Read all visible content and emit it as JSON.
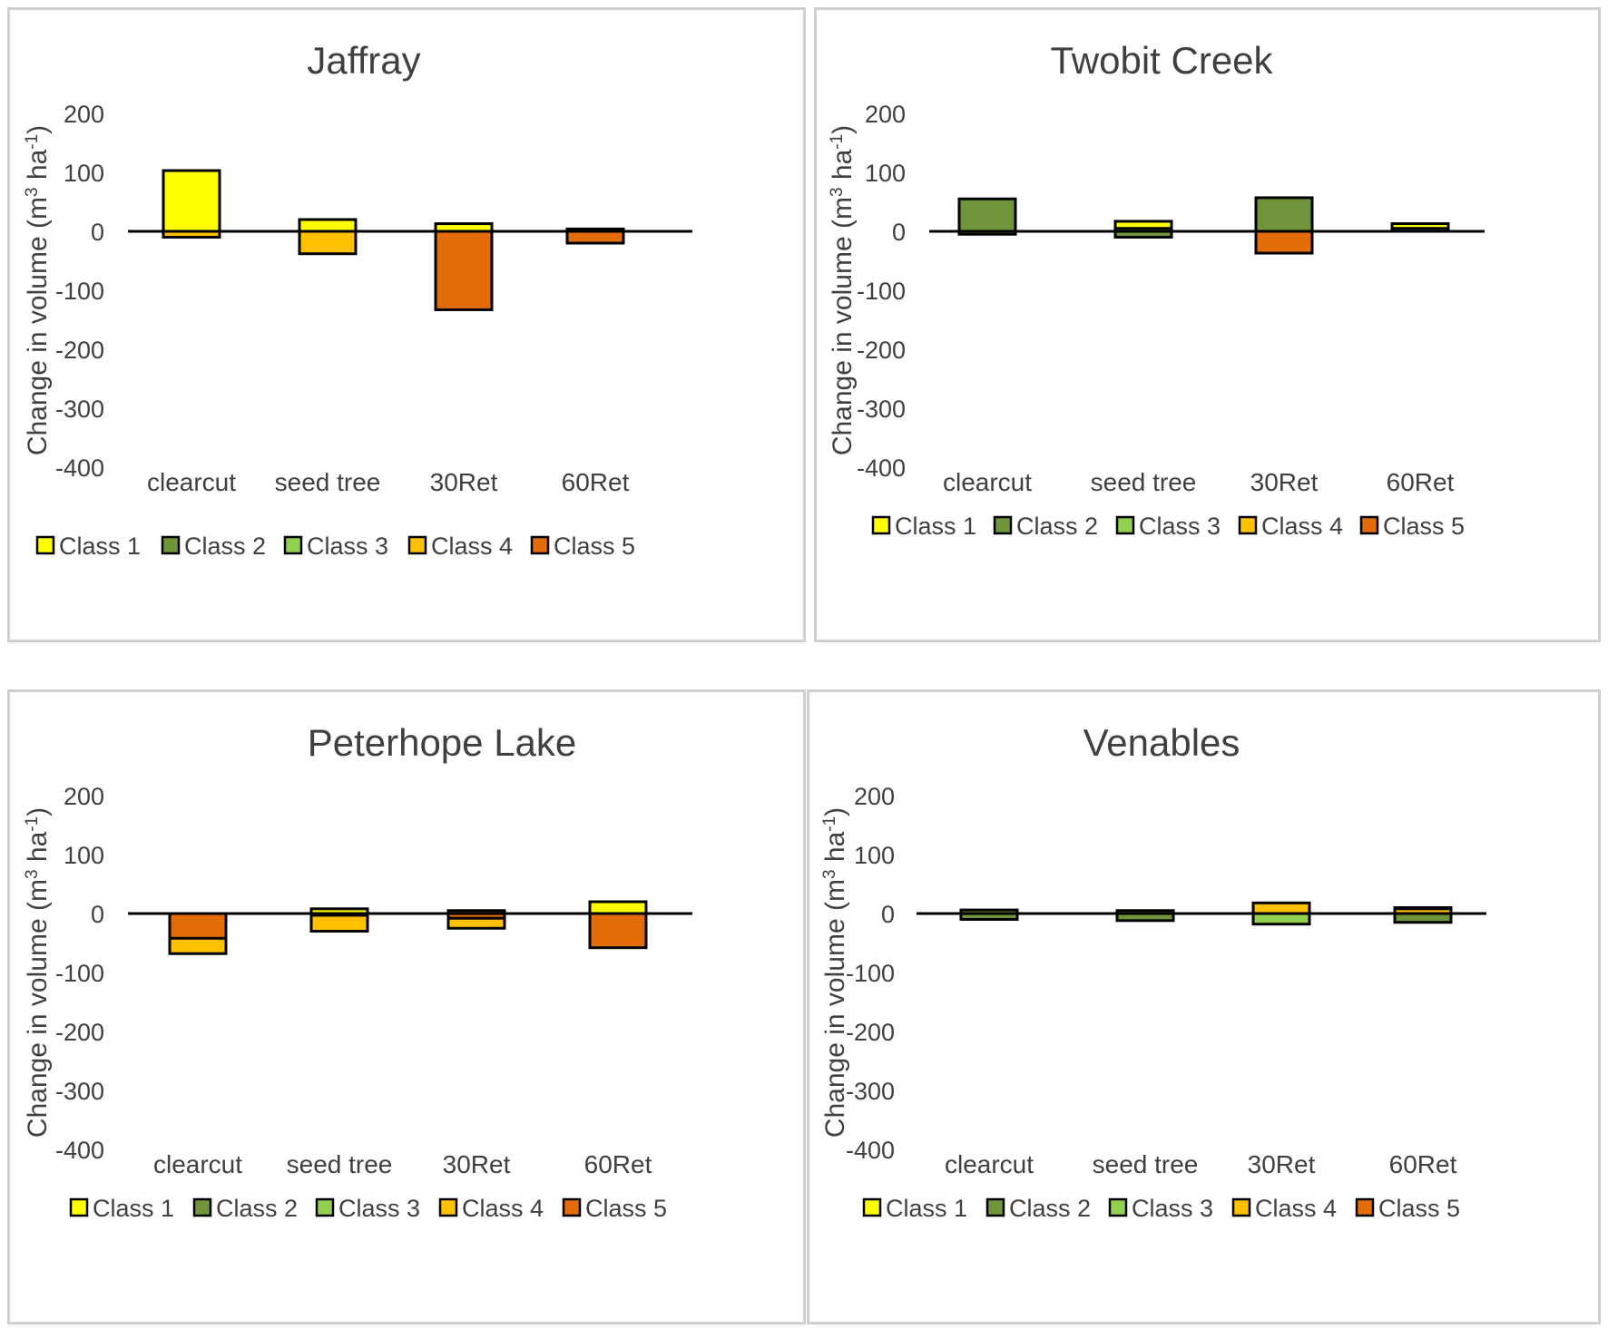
{
  "chart_data": [
    {
      "type": "bar",
      "stacked": true,
      "title": "Jaffray",
      "ylabel": "Change in volume (m3 ha-1)",
      "ylim": [
        -400,
        200
      ],
      "yticks": [
        200,
        100,
        0,
        -100,
        -200,
        -300,
        -400
      ],
      "categories": [
        "clearcut",
        "seed tree",
        "30Ret",
        "60Ret"
      ],
      "series": [
        {
          "name": "Class 1",
          "color": "#ffff00",
          "values": [
            [
              0,
              103
            ],
            [
              0,
              20
            ],
            [
              0,
              13
            ],
            [
              0,
              4
            ]
          ]
        },
        {
          "name": "Class 2",
          "color": "#70943a",
          "values": [
            [
              0,
              0
            ],
            [
              0,
              0
            ],
            [
              0,
              0
            ],
            [
              0,
              0
            ]
          ]
        },
        {
          "name": "Class 3",
          "color": "#92d050",
          "values": [
            [
              0,
              0
            ],
            [
              0,
              0
            ],
            [
              0,
              0
            ],
            [
              0,
              0
            ]
          ]
        },
        {
          "name": "Class 4",
          "color": "#ffc000",
          "values": [
            [
              -10,
              0
            ],
            [
              -38,
              0
            ],
            [
              -5,
              0
            ],
            [
              -3,
              0
            ]
          ]
        },
        {
          "name": "Class 5",
          "color": "#e36c09",
          "values": [
            [
              0,
              0
            ],
            [
              0,
              0
            ],
            [
              -133,
              0
            ],
            [
              -20,
              0
            ]
          ]
        }
      ]
    },
    {
      "type": "bar",
      "stacked": true,
      "title": "Twobit Creek",
      "ylabel": "Change in volume (m3 ha-1)",
      "ylim": [
        -400,
        200
      ],
      "yticks": [
        200,
        100,
        0,
        -100,
        -200,
        -300,
        -400
      ],
      "categories": [
        "clearcut",
        "seed tree",
        "30Ret",
        "60Ret"
      ],
      "series": [
        {
          "name": "Class 1",
          "color": "#ffff00",
          "values": [
            [
              0,
              0
            ],
            [
              0,
              17
            ],
            [
              -12,
              0
            ],
            [
              0,
              13
            ]
          ]
        },
        {
          "name": "Class 2",
          "color": "#70943a",
          "values": [
            [
              -5,
              55
            ],
            [
              -10,
              5
            ],
            [
              0,
              57
            ],
            [
              0,
              5
            ]
          ]
        },
        {
          "name": "Class 3",
          "color": "#92d050",
          "values": [
            [
              0,
              0
            ],
            [
              0,
              0
            ],
            [
              -18,
              0
            ],
            [
              0,
              0
            ]
          ]
        },
        {
          "name": "Class 4",
          "color": "#ffc000",
          "values": [
            [
              0,
              0
            ],
            [
              0,
              0
            ],
            [
              -5,
              0
            ],
            [
              0,
              0
            ]
          ]
        },
        {
          "name": "Class 5",
          "color": "#e36c09",
          "values": [
            [
              0,
              0
            ],
            [
              0,
              0
            ],
            [
              -37,
              0
            ],
            [
              0,
              0
            ]
          ]
        }
      ]
    },
    {
      "type": "bar",
      "stacked": true,
      "title": "Peterhope Lake",
      "ylabel": "Change in volume (m3 ha-1)",
      "ylim": [
        -400,
        200
      ],
      "yticks": [
        200,
        100,
        0,
        -100,
        -200,
        -300,
        -400
      ],
      "categories": [
        "clearcut",
        "seed tree",
        "30Ret",
        "60Ret"
      ],
      "series": [
        {
          "name": "Class 1",
          "color": "#ffff00",
          "values": [
            [
              -12,
              0
            ],
            [
              0,
              8
            ],
            [
              -8,
              0
            ],
            [
              0,
              20
            ]
          ]
        },
        {
          "name": "Class 2",
          "color": "#70943a",
          "values": [
            [
              0,
              0
            ],
            [
              0,
              0
            ],
            [
              -5,
              5
            ],
            [
              0,
              0
            ]
          ]
        },
        {
          "name": "Class 3",
          "color": "#92d050",
          "values": [
            [
              0,
              0
            ],
            [
              -18,
              0
            ],
            [
              -20,
              0
            ],
            [
              -18,
              0
            ]
          ]
        },
        {
          "name": "Class 4",
          "color": "#ffc000",
          "values": [
            [
              -68,
              0
            ],
            [
              -30,
              0
            ],
            [
              -25,
              0
            ],
            [
              -12,
              0
            ]
          ]
        },
        {
          "name": "Class 5",
          "color": "#e36c09",
          "values": [
            [
              -42,
              0
            ],
            [
              -3,
              0
            ],
            [
              -8,
              0
            ],
            [
              -58,
              0
            ]
          ]
        }
      ]
    },
    {
      "type": "bar",
      "stacked": true,
      "title": "Venables",
      "ylabel": "Change in volume (m3 ha-1)",
      "ylim": [
        -400,
        200
      ],
      "yticks": [
        200,
        100,
        0,
        -100,
        -200,
        -300,
        -400
      ],
      "categories": [
        "clearcut",
        "seed tree",
        "30Ret",
        "60Ret"
      ],
      "series": [
        {
          "name": "Class 1",
          "color": "#ffff00",
          "values": [
            [
              0,
              0
            ],
            [
              0,
              0
            ],
            [
              0,
              0
            ],
            [
              0,
              0
            ]
          ]
        },
        {
          "name": "Class 2",
          "color": "#70943a",
          "values": [
            [
              -10,
              6
            ],
            [
              -12,
              5
            ],
            [
              0,
              2
            ],
            [
              -15,
              10
            ]
          ]
        },
        {
          "name": "Class 3",
          "color": "#92d050",
          "values": [
            [
              0,
              0
            ],
            [
              0,
              0
            ],
            [
              -18,
              8
            ],
            [
              0,
              6
            ]
          ]
        },
        {
          "name": "Class 4",
          "color": "#ffc000",
          "values": [
            [
              0,
              0
            ],
            [
              0,
              0
            ],
            [
              0,
              18
            ],
            [
              0,
              8
            ]
          ]
        },
        {
          "name": "Class 5",
          "color": "#e36c09",
          "values": [
            [
              0,
              0
            ],
            [
              0,
              0
            ],
            [
              0,
              0
            ],
            [
              0,
              0
            ]
          ]
        }
      ]
    }
  ]
}
